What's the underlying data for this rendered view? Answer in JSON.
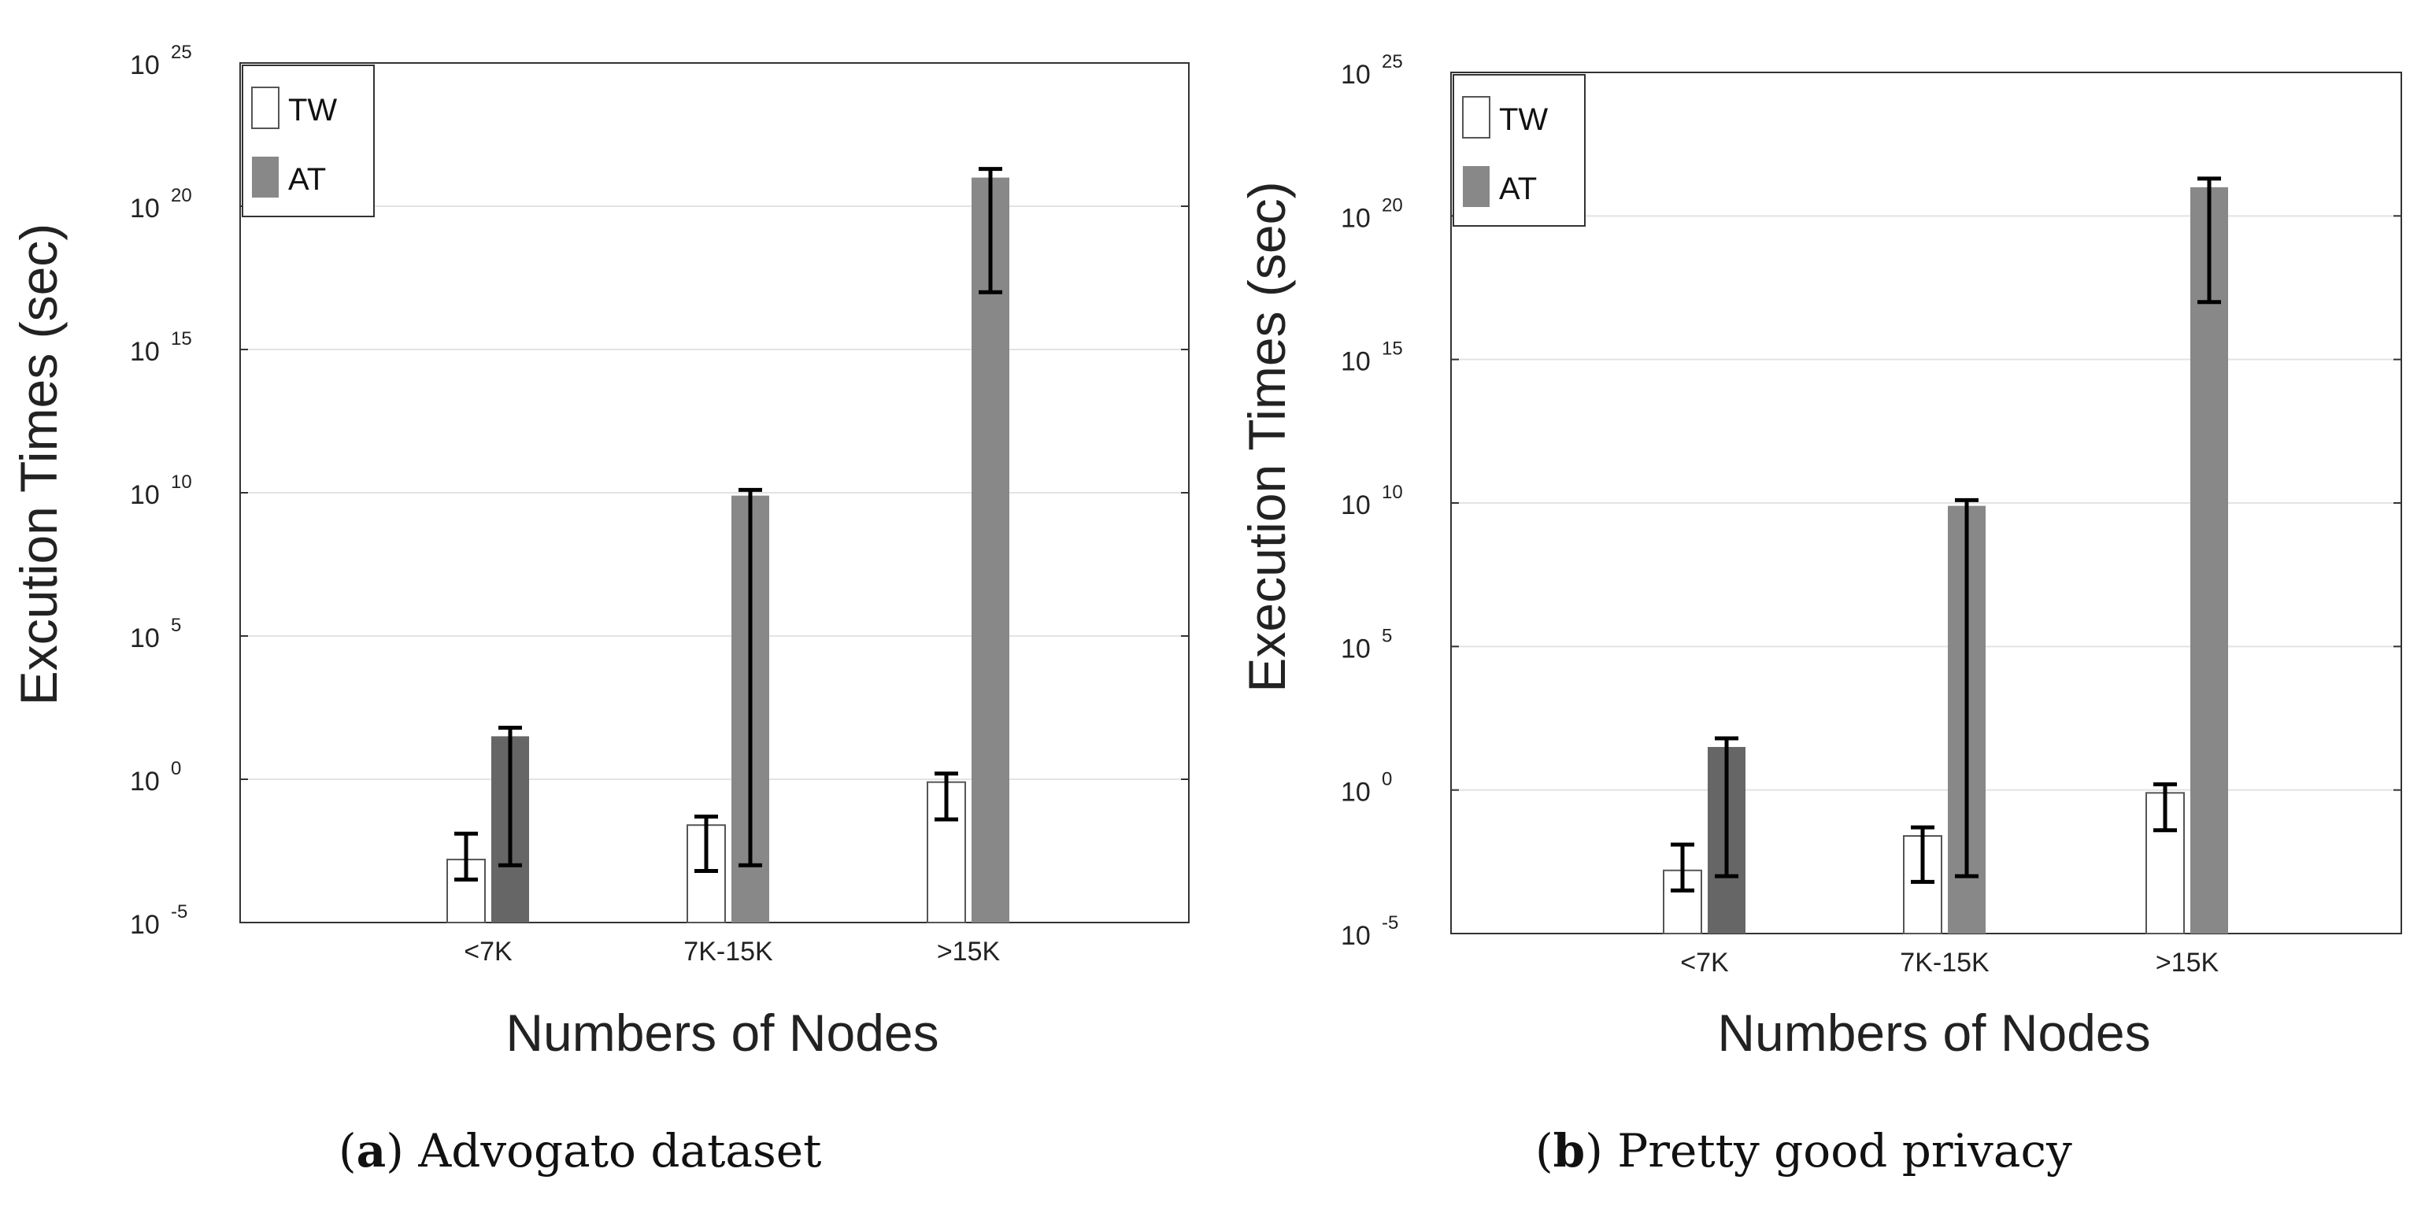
{
  "chart_data": [
    {
      "type": "bar",
      "panel": "a",
      "caption_letter": "a",
      "caption_text": "Advogato dataset",
      "title": "",
      "xlabel": "Numbers of Nodes",
      "ylabel": "Excution Times (sec)",
      "yscale": "log",
      "ylim_exponent": [
        -5,
        25
      ],
      "y_ticks": [
        {
          "base": "10",
          "exp": "-5",
          "value": -5
        },
        {
          "base": "10",
          "exp": "0",
          "value": 0
        },
        {
          "base": "10",
          "exp": "5",
          "value": 5
        },
        {
          "base": "10",
          "exp": "10",
          "value": 10
        },
        {
          "base": "10",
          "exp": "15",
          "value": 15
        },
        {
          "base": "10",
          "exp": "20",
          "value": 20
        },
        {
          "base": "10",
          "exp": "25",
          "value": 25
        }
      ],
      "categories": [
        "<7K",
        "7K-15K",
        ">15K"
      ],
      "legend_position": "top-left",
      "series": [
        {
          "name": "TW",
          "color": "#ffffff",
          "values_log10": [
            -2.8,
            -1.6,
            -0.1
          ],
          "err_low_log10": [
            -3.5,
            -3.2,
            -1.4
          ],
          "err_high_log10": [
            -1.9,
            -1.3,
            0.2
          ]
        },
        {
          "name": "AT",
          "color": "#888888",
          "colors": [
            "#666666",
            "#888888",
            "#888888"
          ],
          "values_log10": [
            1.5,
            9.9,
            21.0
          ],
          "err_low_log10": [
            -3.0,
            -3.0,
            17.0
          ],
          "err_high_log10": [
            1.8,
            10.1,
            21.3
          ]
        }
      ]
    },
    {
      "type": "bar",
      "panel": "b",
      "caption_letter": "b",
      "caption_text": "Pretty good privacy",
      "title": "",
      "xlabel": "Numbers of Nodes",
      "ylabel": "Execution Times (sec)",
      "yscale": "log",
      "ylim_exponent": [
        -5,
        25
      ],
      "y_ticks": [
        {
          "base": "10",
          "exp": "-5",
          "value": -5
        },
        {
          "base": "10",
          "exp": "0",
          "value": 0
        },
        {
          "base": "10",
          "exp": "5",
          "value": 5
        },
        {
          "base": "10",
          "exp": "10",
          "value": 10
        },
        {
          "base": "10",
          "exp": "15",
          "value": 15
        },
        {
          "base": "10",
          "exp": "20",
          "value": 20
        },
        {
          "base": "10",
          "exp": "25",
          "value": 25
        }
      ],
      "categories": [
        "<7K",
        "7K-15K",
        ">15K"
      ],
      "legend_position": "top-left",
      "series": [
        {
          "name": "TW",
          "color": "#ffffff",
          "values_log10": [
            -2.8,
            -1.6,
            -0.1
          ],
          "err_low_log10": [
            -3.5,
            -3.2,
            -1.4
          ],
          "err_high_log10": [
            -1.9,
            -1.3,
            0.2
          ]
        },
        {
          "name": "AT",
          "color": "#888888",
          "colors": [
            "#666666",
            "#888888",
            "#888888"
          ],
          "values_log10": [
            1.5,
            9.9,
            21.0
          ],
          "err_low_log10": [
            -3.0,
            -3.0,
            17.0
          ],
          "err_high_log10": [
            1.8,
            10.1,
            21.3
          ]
        }
      ]
    }
  ]
}
